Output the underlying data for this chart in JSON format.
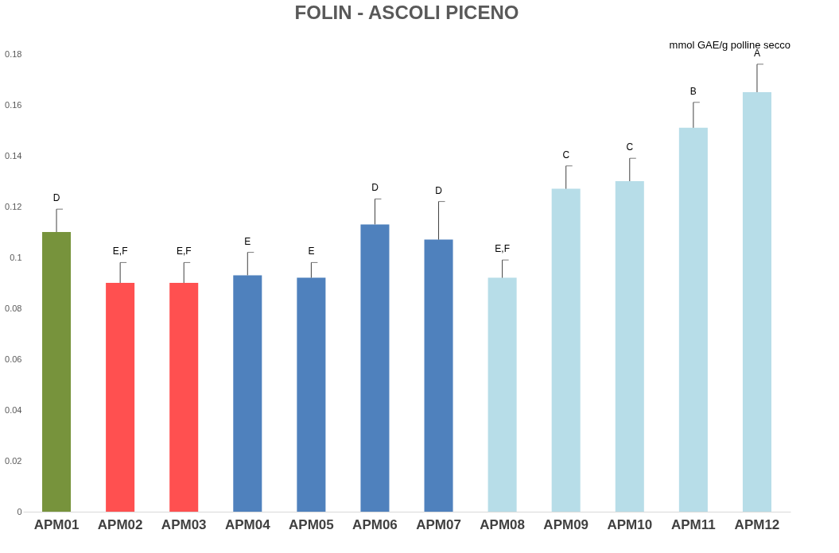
{
  "chart_data": {
    "type": "bar",
    "title": "FOLIN - ASCOLI PICENO",
    "ylabel": "mmol GAE/g polline secco",
    "categories": [
      "APM01",
      "APM02",
      "APM03",
      "APM04",
      "APM05",
      "APM06",
      "APM07",
      "APM08",
      "APM09",
      "APM10",
      "APM11",
      "APM12"
    ],
    "values": [
      0.11,
      0.09,
      0.09,
      0.093,
      0.092,
      0.113,
      0.107,
      0.092,
      0.127,
      0.13,
      0.151,
      0.165
    ],
    "errors": [
      [
        0.11,
        0.119
      ],
      [
        0.09,
        0.098
      ],
      [
        0.09,
        0.098
      ],
      [
        0.093,
        0.102
      ],
      [
        0.092,
        0.098
      ],
      [
        0.113,
        0.123
      ],
      [
        0.107,
        0.122
      ],
      [
        0.092,
        0.099
      ],
      [
        0.127,
        0.136
      ],
      [
        0.13,
        0.139
      ],
      [
        0.151,
        0.161
      ],
      [
        0.165,
        0.176
      ]
    ],
    "colors": [
      "#77933c",
      "#ff5050",
      "#ff5050",
      "#4f81bd",
      "#4f81bd",
      "#4f81bd",
      "#4f81bd",
      "#b7dde8",
      "#b7dde8",
      "#b7dde8",
      "#b7dde8",
      "#b7dde8"
    ],
    "ylim": [
      0,
      0.18
    ],
    "yticks": [
      0,
      0.02,
      0.04,
      0.06,
      0.08,
      0.1,
      0.12,
      0.14,
      0.16,
      0.18
    ],
    "grid": false,
    "annotations": [
      "D",
      "E,F",
      "E,F",
      "E",
      "E",
      "D",
      "D",
      "E,F",
      "C",
      "C",
      "B",
      "A"
    ]
  }
}
